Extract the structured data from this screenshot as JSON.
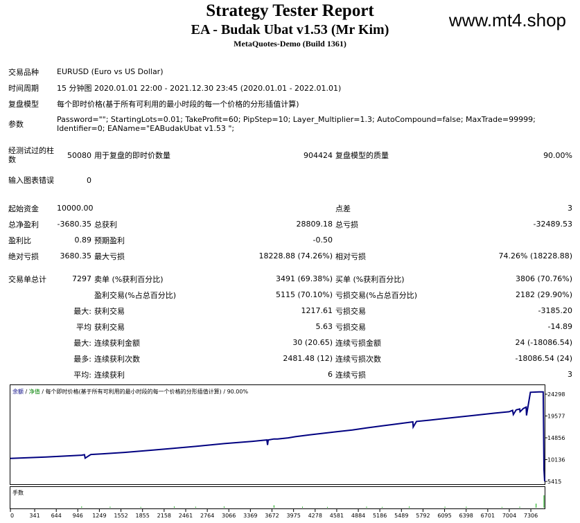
{
  "header": {
    "title": "Strategy Tester Report",
    "subtitle": "EA - Budak Ubat v1.53 (Mr Kim)",
    "build": "MetaQuotes-Demo (Build 1361)",
    "site": "www.mt4.shop"
  },
  "info": {
    "symbol_label": "交易品种",
    "symbol_value": "EURUSD (Euro vs US Dollar)",
    "period_label": "时间周期",
    "period_value": "15 分钟图 2020.01.01 22:00 - 2021.12.30 23:45 (2020.01.01 - 2022.01.01)",
    "model_label": "复盘模型",
    "model_value": "每个即时价格(基于所有可利用的最小时段的每一个价格的分形插值计算)",
    "params_label": "参数",
    "params_line1": "Password=\"\"; StartingLots=0.01; TakeProfit=60; PipStep=10; Layer_Multiplier=1.3; AutoCompound=false; MaxTrade=99999;",
    "params_line2": "Identifier=0; EAName=\"EABudakUbat v1.53 \";"
  },
  "bars": {
    "bars_label": "经测试过的柱数",
    "bars_value": "50080",
    "ticks_label": "用于复盘的即时价数量",
    "ticks_value": "904424",
    "quality_label": "复盘模型的质量",
    "quality_value": "90.00%",
    "errors_label": "输入图表错误",
    "errors_value": "0"
  },
  "stats": {
    "deposit_label": "起始资金",
    "deposit_value": "10000.00",
    "spread_label": "点差",
    "spread_value": "3",
    "net_label": "总净盈利",
    "net_value": "-3680.35",
    "gross_profit_label": "总获利",
    "gross_profit_value": "28809.18",
    "gross_loss_label": "总亏损",
    "gross_loss_value": "-32489.53",
    "pf_label": "盈利比",
    "pf_value": "0.89",
    "payoff_label": "预期盈利",
    "payoff_value": "-0.50",
    "abs_dd_label": "绝对亏损",
    "abs_dd_value": "3680.35",
    "max_dd_label": "最大亏损",
    "max_dd_value": "18228.88 (74.26%)",
    "rel_dd_label": "相对亏损",
    "rel_dd_value": "74.26% (18228.88)"
  },
  "trades": {
    "total_label": "交易单总计",
    "total_value": "7297",
    "short_label": "卖单 (%获利百分比)",
    "short_value": "3491 (69.38%)",
    "long_label": "买单 (%获利百分比)",
    "long_value": "3806 (70.76%)",
    "win_label": "盈利交易(%占总百分比)",
    "win_value": "5115 (70.10%)",
    "loss_label": "亏损交易(%占总百分比)",
    "loss_value": "2182 (29.90%)",
    "rows": [
      {
        "prefix": "最大:",
        "l1": "获利交易",
        "v1": "1217.61",
        "l2": "亏损交易",
        "v2": "-3185.20"
      },
      {
        "prefix": "平均",
        "l1": "获利交易",
        "v1": "5.63",
        "l2": "亏损交易",
        "v2": "-14.89"
      },
      {
        "prefix": "最大:",
        "l1": "连续获利金额",
        "v1": "30 (20.65)",
        "l2": "连续亏损金额",
        "v2": "24 (-18086.54)"
      },
      {
        "prefix": "最多:",
        "l1": "连续获利次数",
        "v1": "2481.48 (12)",
        "l2": "连续亏损次数",
        "v2": "-18086.54 (24)"
      },
      {
        "prefix": "平均:",
        "l1": "连续获利",
        "v1": "6",
        "l2": "连续亏损",
        "v2": "3"
      }
    ]
  },
  "chart_data": {
    "type": "line",
    "caption_balance": "余额",
    "caption_sep": " / ",
    "caption_equity": "净值",
    "caption_rest": " / 每个即时价格(基于所有可利用的最小时段的每一个价格的分形插值计算) / 90.00%",
    "volume_label": "手数",
    "ylim": [
      5415,
      25200
    ],
    "xlim": [
      0,
      7500
    ],
    "y_ticks": [
      "24298",
      "19577",
      "14856",
      "10136",
      "5415"
    ],
    "y_tick_values": [
      24298,
      19577,
      14856,
      10136,
      5415
    ],
    "x_ticks": [
      "0",
      "341",
      "644",
      "946",
      "1249",
      "1552",
      "1855",
      "2158",
      "2461",
      "2764",
      "3066",
      "3369",
      "3672",
      "3975",
      "4278",
      "4581",
      "4884",
      "5186",
      "5489",
      "5792",
      "6095",
      "6398",
      "6701",
      "7004",
      "7306"
    ],
    "x_tick_values": [
      0,
      341,
      644,
      946,
      1249,
      1552,
      1855,
      2158,
      2461,
      2764,
      3066,
      3369,
      3672,
      3975,
      4278,
      4581,
      4884,
      5186,
      5489,
      5792,
      6095,
      6398,
      6701,
      7004,
      7306
    ],
    "series": [
      {
        "color": "#000080",
        "x": [
          0,
          500,
          1000,
          1040,
          1050,
          1120,
          1130,
          1300,
          1600,
          2000,
          2300,
          2600,
          3000,
          3400,
          3600,
          3610,
          3620,
          3700,
          3750,
          3900,
          4000,
          4200,
          4400,
          4600,
          4800,
          5000,
          5200,
          5400,
          5650,
          5655,
          5700,
          5900,
          6200,
          6500,
          6800,
          7000,
          7050,
          7060,
          7100,
          7150,
          7155,
          7200,
          7240,
          7245,
          7300,
          7420,
          7480,
          7485,
          7490,
          7500
        ],
        "y": [
          10400,
          10700,
          11100,
          11200,
          10450,
          11150,
          11250,
          11400,
          11700,
          12200,
          12600,
          13000,
          13600,
          14100,
          14400,
          13300,
          14400,
          14600,
          14600,
          14850,
          15100,
          15500,
          15850,
          16200,
          16550,
          17000,
          17400,
          17800,
          18300,
          17200,
          18400,
          18700,
          19200,
          19700,
          20200,
          20500,
          20800,
          19900,
          20900,
          21100,
          20500,
          21200,
          21500,
          19700,
          24700,
          24800,
          24800,
          16000,
          8000,
          5415
        ]
      }
    ],
    "volume_x": [
      1000,
      1400,
      1830,
      2300,
      2600,
      3000,
      3700,
      4100,
      4450,
      5000,
      5220,
      5600,
      6100,
      6400,
      6900,
      7150,
      7380,
      7490
    ],
    "volume_v": [
      0.06,
      0.05,
      0.04,
      0.06,
      0.05,
      0.06,
      0.12,
      0.05,
      0.04,
      0.05,
      0.04,
      0.06,
      0.05,
      0.05,
      0.04,
      0.05,
      0.2,
      0.6
    ]
  }
}
